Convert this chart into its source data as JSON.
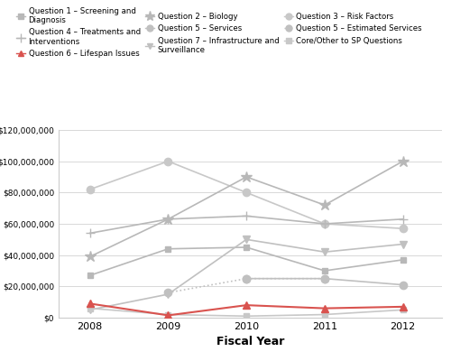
{
  "years": [
    2008,
    2009,
    2010,
    2011,
    2012
  ],
  "series": {
    "Q1_screening": {
      "label": "Question 1 – Screening and\nDiagnosis",
      "values": [
        27000000,
        44000000,
        45000000,
        30000000,
        37000000
      ],
      "color": "#b8b8b8",
      "marker": "s",
      "linestyle": "-",
      "linewidth": 1.2,
      "markersize": 5
    },
    "Q2_biology": {
      "label": "Question 2 – Biology",
      "values": [
        39000000,
        63000000,
        90000000,
        72000000,
        100000000
      ],
      "color": "#b8b8b8",
      "marker": "*",
      "linestyle": "-",
      "linewidth": 1.2,
      "markersize": 9
    },
    "Q3_risk": {
      "label": "Question 3 – Risk Factors",
      "values": [
        82000000,
        100000000,
        80000000,
        60000000,
        57000000
      ],
      "color": "#c8c8c8",
      "marker": "o",
      "linestyle": "-",
      "linewidth": 1.2,
      "markersize": 6
    },
    "Q4_treatments": {
      "label": "Question 4 – Treatments and\nInterventions",
      "values": [
        54000000,
        63000000,
        65000000,
        60000000,
        63000000
      ],
      "color": "#b8b8b8",
      "marker": "+",
      "linestyle": "-",
      "linewidth": 1.2,
      "markersize": 7
    },
    "Q5_services": {
      "label": "Question 5 – Services",
      "values": [
        null,
        null,
        25000000,
        25000000,
        21000000
      ],
      "color": "#c0c0c0",
      "marker": "o",
      "linestyle": "-",
      "linewidth": 1.2,
      "markersize": 6
    },
    "Q5_estimated": {
      "label": "Question 5 – Estimated Services",
      "values": [
        null,
        16000000,
        25000000,
        25000000,
        null
      ],
      "color": "#c0c0c0",
      "marker": "o",
      "linestyle": ":",
      "linewidth": 1.2,
      "markersize": 6
    },
    "Q6_lifespan": {
      "label": "Question 6 – Lifespan Issues",
      "values": [
        9000000,
        1500000,
        8000000,
        6000000,
        7000000
      ],
      "color": "#d9534f",
      "marker": "^",
      "linestyle": "-",
      "linewidth": 1.5,
      "markersize": 6
    },
    "Q7_infrastructure": {
      "label": "Question 7 – Infrastructure and\nSurveillance",
      "values": [
        5000000,
        15000000,
        50000000,
        42000000,
        47000000
      ],
      "color": "#c0c0c0",
      "marker": "v",
      "linestyle": "-",
      "linewidth": 1.2,
      "markersize": 6
    },
    "core_other": {
      "label": "Core/Other to SP Questions",
      "values": [
        6000000,
        2000000,
        1000000,
        2000000,
        5000000
      ],
      "color": "#c8c8c8",
      "marker": "s",
      "linestyle": "-",
      "linewidth": 1.2,
      "markersize": 4
    }
  },
  "xlabel": "Fiscal Year",
  "ylim": [
    0,
    120000000
  ],
  "yticks": [
    0,
    20000000,
    40000000,
    60000000,
    80000000,
    100000000,
    120000000
  ],
  "ytick_labels": [
    "$0",
    "$20,000,000",
    "$40,000,000",
    "$60,000,000",
    "$80,000,000",
    "$100,000,000",
    "$120,000,000"
  ],
  "background_color": "#ffffff",
  "grid_color": "#d8d8d8",
  "legend_ncol": 3,
  "legend_fontsize": 6.2
}
